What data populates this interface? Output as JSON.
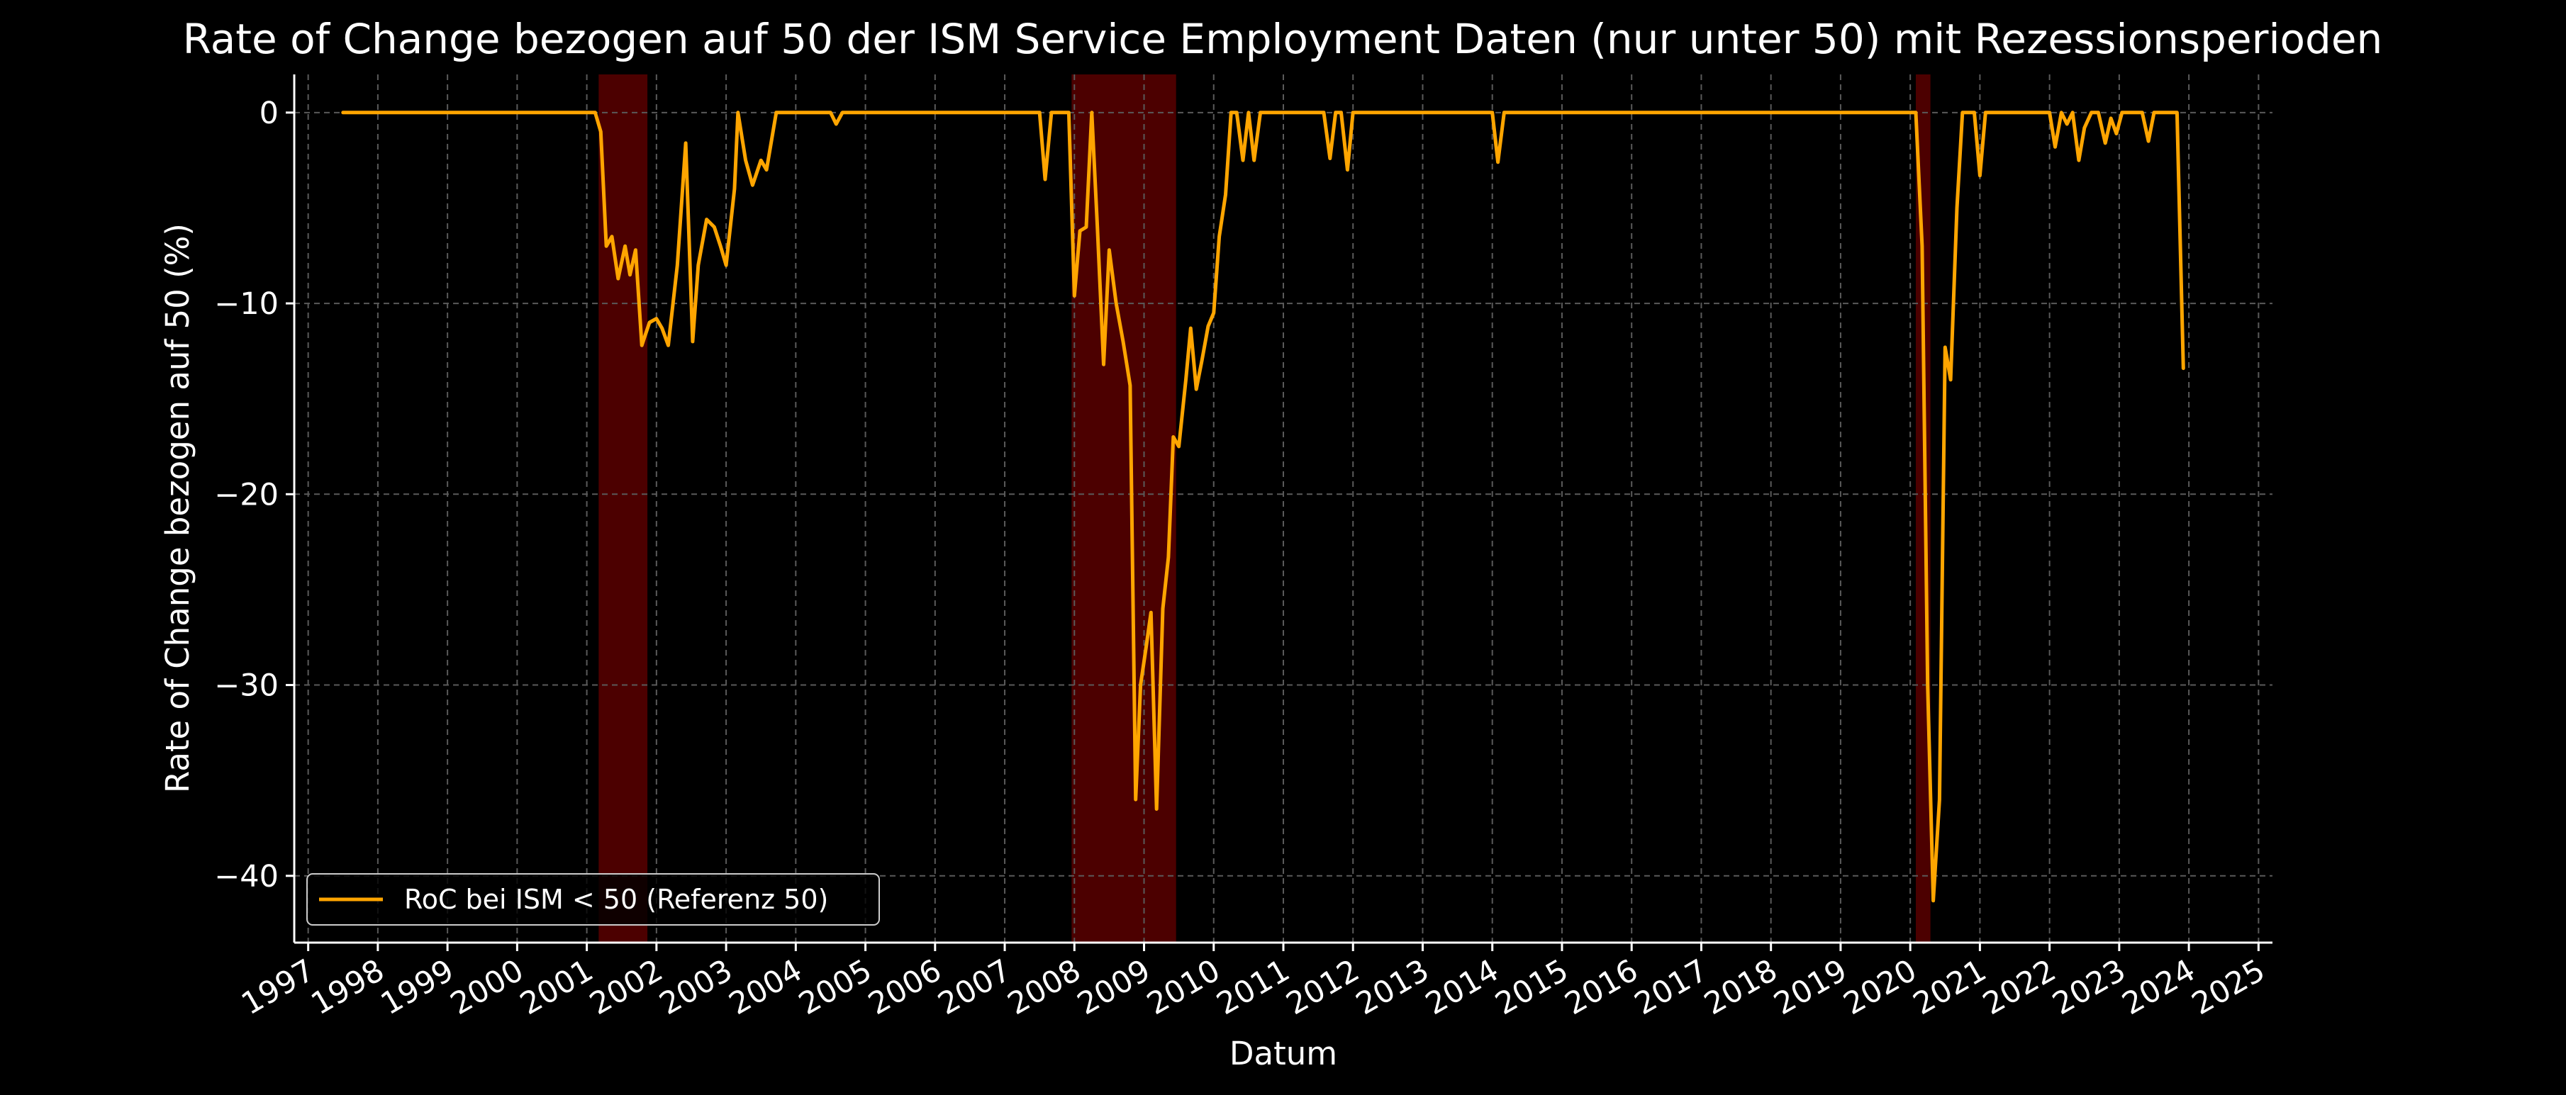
{
  "chart_data": {
    "type": "line",
    "title": "Rate of Change bezogen auf 50 der ISM Service Employment Daten (nur unter 50) mit Rezessionsperioden",
    "xlabel": "Datum",
    "ylabel": "Rate of Change bezogen auf 50 (%)",
    "xlim": [
      1996.8,
      2025.2
    ],
    "ylim": [
      -43.5,
      2
    ],
    "x_ticks": [
      1997,
      1998,
      1999,
      2000,
      2001,
      2002,
      2003,
      2004,
      2005,
      2006,
      2007,
      2008,
      2009,
      2010,
      2011,
      2012,
      2013,
      2014,
      2015,
      2016,
      2017,
      2018,
      2019,
      2020,
      2021,
      2022,
      2023,
      2024,
      2025
    ],
    "x_tick_labels": [
      "1997",
      "1998",
      "1999",
      "2000",
      "2001",
      "2002",
      "2003",
      "2004",
      "2005",
      "2006",
      "2007",
      "2008",
      "2009",
      "2010",
      "2011",
      "2012",
      "2013",
      "2014",
      "2015",
      "2016",
      "2017",
      "2018",
      "2019",
      "2020",
      "2021",
      "2022",
      "2023",
      "2024",
      "2025"
    ],
    "y_ticks": [
      0,
      -10,
      -20,
      -30,
      -40
    ],
    "y_tick_labels": [
      "0",
      "−10",
      "−20",
      "−30",
      "−40"
    ],
    "grid": true,
    "legend_position": "lower-left",
    "recession_periods": [
      [
        2001.17,
        2001.87
      ],
      [
        2007.96,
        2009.46
      ],
      [
        2020.08,
        2020.29
      ]
    ],
    "series": [
      {
        "name": "RoC bei ISM < 50 (Referenz 50)",
        "color": "#FFA500",
        "points": [
          [
            1997.5,
            0
          ],
          [
            2001.12,
            0
          ],
          [
            2001.2,
            -1
          ],
          [
            2001.28,
            -7
          ],
          [
            2001.36,
            -6.5
          ],
          [
            2001.45,
            -8.7
          ],
          [
            2001.55,
            -7
          ],
          [
            2001.62,
            -8.5
          ],
          [
            2001.7,
            -7.2
          ],
          [
            2001.79,
            -12.2
          ],
          [
            2001.9,
            -11
          ],
          [
            2002.0,
            -10.8
          ],
          [
            2002.08,
            -11.3
          ],
          [
            2002.17,
            -12.2
          ],
          [
            2002.3,
            -8
          ],
          [
            2002.42,
            -1.6
          ],
          [
            2002.52,
            -12
          ],
          [
            2002.6,
            -8
          ],
          [
            2002.72,
            -5.6
          ],
          [
            2002.83,
            -6
          ],
          [
            2002.92,
            -7
          ],
          [
            2003.0,
            -8
          ],
          [
            2003.12,
            -4
          ],
          [
            2003.17,
            0
          ],
          [
            2003.28,
            -2.5
          ],
          [
            2003.38,
            -3.8
          ],
          [
            2003.5,
            -2.5
          ],
          [
            2003.58,
            -3
          ],
          [
            2003.72,
            0
          ],
          [
            2004.5,
            0
          ],
          [
            2004.58,
            -0.6
          ],
          [
            2004.67,
            0
          ],
          [
            2007.5,
            0
          ],
          [
            2007.58,
            -3.5
          ],
          [
            2007.67,
            0
          ],
          [
            2007.92,
            0
          ],
          [
            2008.0,
            -9.6
          ],
          [
            2008.08,
            -6.2
          ],
          [
            2008.17,
            -6
          ],
          [
            2008.25,
            0
          ],
          [
            2008.33,
            -6
          ],
          [
            2008.42,
            -13.2
          ],
          [
            2008.5,
            -7.2
          ],
          [
            2008.6,
            -10
          ],
          [
            2008.7,
            -12
          ],
          [
            2008.8,
            -14.3
          ],
          [
            2008.88,
            -36
          ],
          [
            2008.95,
            -30
          ],
          [
            2009.03,
            -28
          ],
          [
            2009.1,
            -26.2
          ],
          [
            2009.18,
            -36.5
          ],
          [
            2009.27,
            -26
          ],
          [
            2009.35,
            -23.3
          ],
          [
            2009.42,
            -17
          ],
          [
            2009.5,
            -17.5
          ],
          [
            2009.6,
            -14
          ],
          [
            2009.67,
            -11.3
          ],
          [
            2009.75,
            -14.5
          ],
          [
            2009.83,
            -13
          ],
          [
            2009.92,
            -11.2
          ],
          [
            2010.0,
            -10.5
          ],
          [
            2010.08,
            -6.5
          ],
          [
            2010.17,
            -4.3
          ],
          [
            2010.25,
            0
          ],
          [
            2010.33,
            0
          ],
          [
            2010.42,
            -2.5
          ],
          [
            2010.5,
            0
          ],
          [
            2010.58,
            -2.5
          ],
          [
            2010.67,
            0
          ],
          [
            2011.58,
            0
          ],
          [
            2011.67,
            -2.4
          ],
          [
            2011.75,
            0
          ],
          [
            2011.83,
            0
          ],
          [
            2011.92,
            -3
          ],
          [
            2012.0,
            0
          ],
          [
            2014.0,
            0
          ],
          [
            2014.08,
            -2.6
          ],
          [
            2014.17,
            0
          ],
          [
            2020.08,
            0
          ],
          [
            2020.17,
            -7
          ],
          [
            2020.25,
            -30
          ],
          [
            2020.33,
            -41.3
          ],
          [
            2020.42,
            -36
          ],
          [
            2020.5,
            -12.3
          ],
          [
            2020.58,
            -14
          ],
          [
            2020.67,
            -5
          ],
          [
            2020.75,
            0
          ],
          [
            2020.92,
            0
          ],
          [
            2021.0,
            -3.3
          ],
          [
            2021.08,
            0
          ],
          [
            2022.0,
            0
          ],
          [
            2022.08,
            -1.8
          ],
          [
            2022.17,
            0
          ],
          [
            2022.25,
            -0.6
          ],
          [
            2022.33,
            0
          ],
          [
            2022.42,
            -2.5
          ],
          [
            2022.5,
            -0.8
          ],
          [
            2022.6,
            0
          ],
          [
            2022.7,
            0
          ],
          [
            2022.8,
            -1.6
          ],
          [
            2022.88,
            -0.3
          ],
          [
            2022.96,
            -1.1
          ],
          [
            2023.04,
            0
          ],
          [
            2023.33,
            0
          ],
          [
            2023.42,
            -1.5
          ],
          [
            2023.5,
            0
          ],
          [
            2023.83,
            0
          ],
          [
            2023.92,
            -13.4
          ]
        ]
      }
    ]
  }
}
